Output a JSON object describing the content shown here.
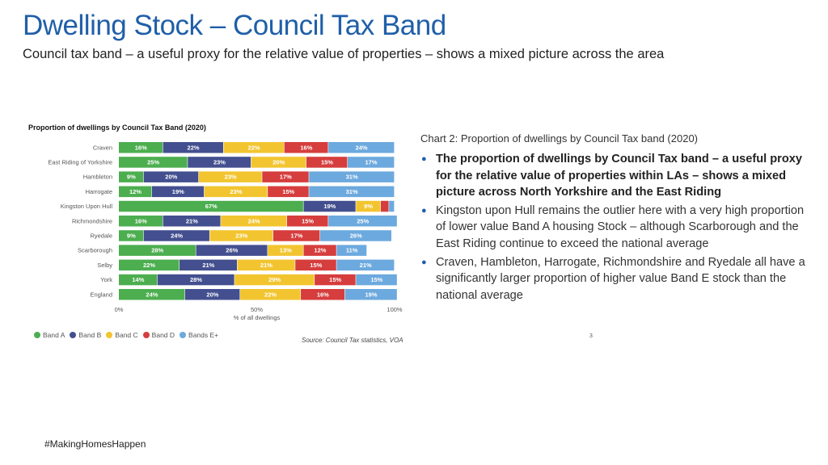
{
  "header": {
    "title": "Dwelling Stock – Council Tax Band",
    "subtitle": "Council tax band – a useful proxy for the relative value of properties – shows a mixed picture across the area"
  },
  "chart_caption": "Chart 2: Proportion of dwellings by Council Tax band (2020)",
  "bullets": [
    {
      "text": "The proportion of dwellings by Council Tax band – a useful proxy for the relative value of properties within LAs – shows a mixed picture across North Yorkshire and the East Riding",
      "bold": true
    },
    {
      "text": "Kingston upon Hull remains the outlier here with a very high proportion of lower value Band A housing Stock – although Scarborough and the East Riding continue to exceed the national average",
      "bold": false
    },
    {
      "text": "Craven, Hambleton, Harrogate, Richmondshire and Ryedale all have a significantly larger proportion of higher value Band E stock than the national average",
      "bold": false
    }
  ],
  "page_number": "3",
  "footer": {
    "hashtag": "#MakingHomesHappen"
  },
  "chart_data": {
    "type": "bar",
    "orientation": "horizontal",
    "stacked": true,
    "title": "Proportion of dwellings by Council Tax Band (2020)",
    "xlabel": "% of all dwellings",
    "ylabel": "",
    "xlim": [
      0,
      100
    ],
    "x_ticks": [
      "0%",
      "50%",
      "100%"
    ],
    "legend_position": "bottom-left",
    "source": "Source: Council Tax statistics, VOA",
    "categories": [
      "Craven",
      "East Riding of Yorkshire",
      "Hambleton",
      "Harrogate",
      "Kingston Upon Hull",
      "Richmondshire",
      "Ryedale",
      "Scarborough",
      "Selby",
      "York",
      "England"
    ],
    "series": [
      {
        "name": "Band A",
        "color": "#4cae4f",
        "values": [
          16,
          25,
          9,
          12,
          67,
          16,
          9,
          28,
          22,
          14,
          24
        ]
      },
      {
        "name": "Band B",
        "color": "#434f8f",
        "values": [
          22,
          23,
          20,
          19,
          19,
          21,
          24,
          26,
          21,
          28,
          20
        ]
      },
      {
        "name": "Band C",
        "color": "#f2c530",
        "values": [
          22,
          20,
          23,
          23,
          9,
          24,
          23,
          13,
          21,
          29,
          22
        ]
      },
      {
        "name": "Band D",
        "color": "#d63d3d",
        "values": [
          16,
          15,
          17,
          15,
          3,
          15,
          17,
          12,
          15,
          15,
          16
        ]
      },
      {
        "name": "Bands E+",
        "color": "#6ca9de",
        "values": [
          24,
          17,
          31,
          31,
          2,
          25,
          26,
          11,
          21,
          15,
          19
        ]
      }
    ],
    "data_labels": [
      [
        "16%",
        "22%",
        "22%",
        "16%",
        "24%"
      ],
      [
        "25%",
        "23%",
        "20%",
        "15%",
        "17%"
      ],
      [
        "9%",
        "20%",
        "23%",
        "17%",
        "31%"
      ],
      [
        "12%",
        "19%",
        "23%",
        "15%",
        "31%"
      ],
      [
        "67%",
        "19%",
        "9%",
        "",
        ""
      ],
      [
        "16%",
        "21%",
        "24%",
        "15%",
        "25%"
      ],
      [
        "9%",
        "24%",
        "23%",
        "17%",
        "26%"
      ],
      [
        "28%",
        "26%",
        "13%",
        "12%",
        "11%"
      ],
      [
        "22%",
        "21%",
        "21%",
        "15%",
        "21%"
      ],
      [
        "14%",
        "28%",
        "29%",
        "15%",
        "15%"
      ],
      [
        "24%",
        "20%",
        "22%",
        "16%",
        "19%"
      ]
    ]
  }
}
